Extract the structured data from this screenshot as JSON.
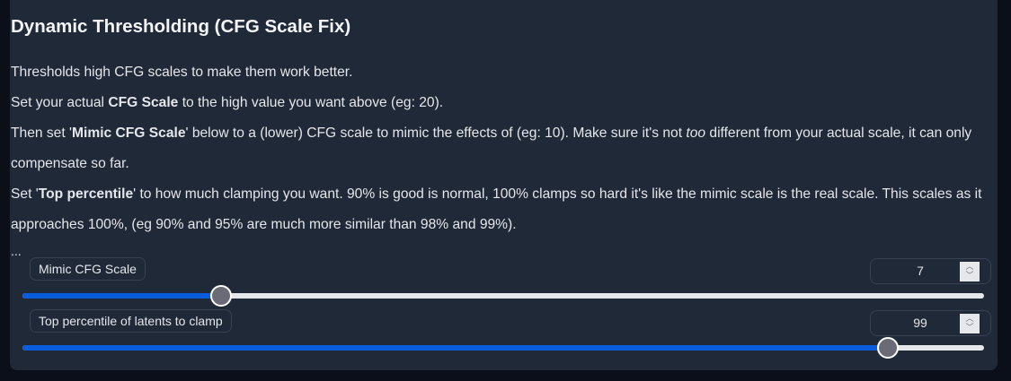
{
  "section": {
    "title": "Dynamic Thresholding (CFG Scale Fix)",
    "lines": [
      {
        "parts": [
          "Thresholds high CFG scales to make them work better."
        ]
      },
      {
        "a": "Set your actual ",
        "b": "CFG Scale",
        "c": " to the high value you want above (eg: 20)."
      },
      {
        "a": "Then set '",
        "b": "Mimic CFG Scale",
        "c": "' below to a (lower) CFG scale to mimic the effects of (eg: 10). Make sure it's not ",
        "d": "too",
        "e": " different from your actual scale, it can only compensate so far."
      },
      {
        "a": "Set '",
        "b": "Top percentile",
        "c": "' to how much clamping you want. 90% is good is normal, 100% clamps so hard it's like the mimic scale is the real scale. This scales as it approaches 100%, (eg 90% and 95% are much more similar than 98% and 99%)."
      }
    ],
    "ellipsis": "..."
  },
  "sliders": [
    {
      "label": "Mimic CFG Scale",
      "value": 7,
      "min": 1,
      "max": 30
    },
    {
      "label": "Top percentile of latents to clamp",
      "value": 99,
      "min": 90,
      "max": 100
    }
  ],
  "colors": {
    "accent": "#0a5cdc",
    "panel": "#1f2937",
    "background": "#0b0f19"
  },
  "icons": {
    "spinner": "up-down-chevron-icon"
  }
}
